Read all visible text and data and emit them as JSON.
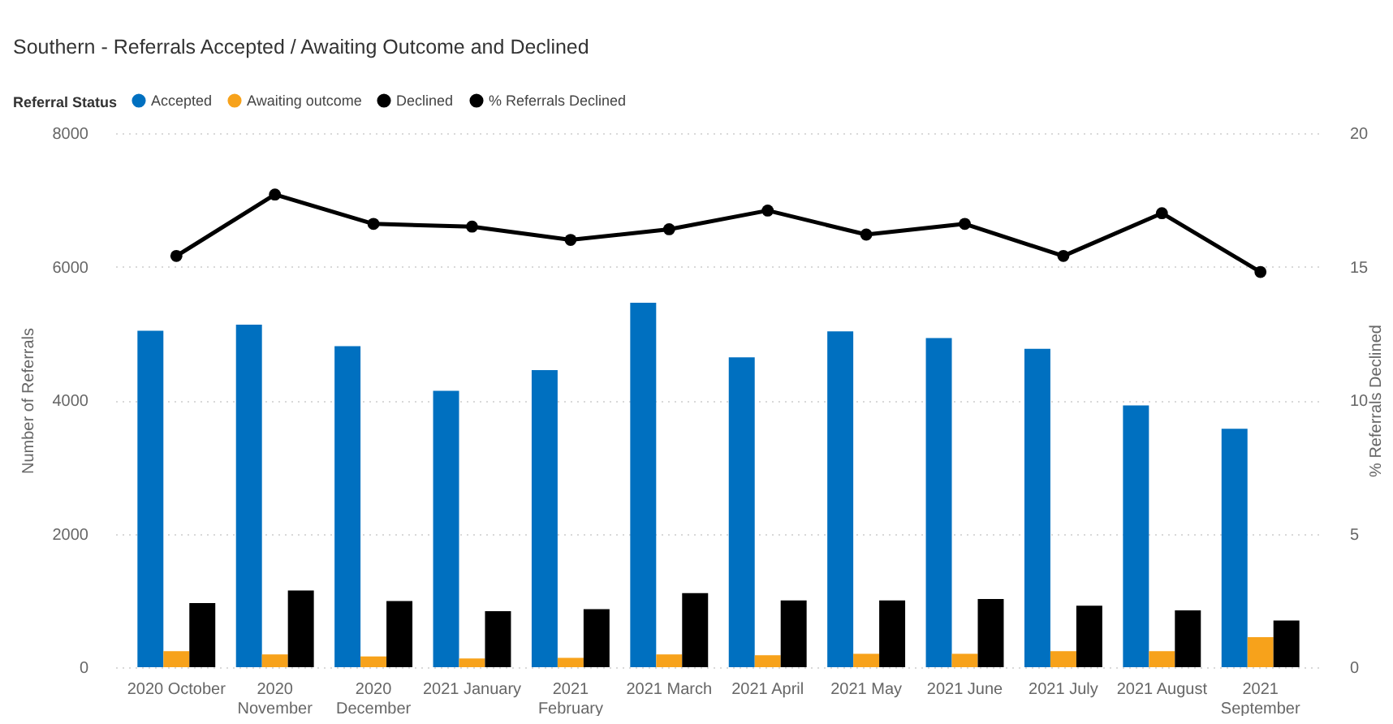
{
  "chart_data": {
    "type": "bar",
    "title": "Southern - Referrals Accepted / Awaiting Outcome and Declined",
    "legend_title": "Referral Status",
    "ylabel": "Number of Referrals",
    "y2label": "% Referrals Declined",
    "categories": [
      "2020 October",
      "2020 November",
      "2020 December",
      "2021 January",
      "2021 February",
      "2021 March",
      "2021 April",
      "2021 May",
      "2021 June",
      "2021 July",
      "2021 August",
      "2021 September"
    ],
    "series": [
      {
        "name": "Accepted",
        "color": "#0070c0",
        "values": [
          5040,
          5130,
          4810,
          4140,
          4450,
          5460,
          4640,
          5030,
          4930,
          4770,
          3920,
          3570
        ]
      },
      {
        "name": "Awaiting outcome",
        "color": "#f7a21b",
        "values": [
          240,
          190,
          160,
          130,
          140,
          190,
          180,
          200,
          200,
          240,
          240,
          450
        ]
      },
      {
        "name": "Declined",
        "color": "#000000",
        "values": [
          960,
          1150,
          990,
          840,
          870,
          1110,
          1000,
          1000,
          1020,
          920,
          850,
          700
        ]
      },
      {
        "name": "% Referrals Declined",
        "type": "line",
        "axis": "y2",
        "color": "#000000",
        "values": [
          15.4,
          17.7,
          16.6,
          16.5,
          16.0,
          16.4,
          17.1,
          16.2,
          16.6,
          15.4,
          17.0,
          14.8
        ]
      }
    ],
    "ylim": [
      0,
      8000
    ],
    "yticks": [
      0,
      2000,
      4000,
      6000,
      8000
    ],
    "y2lim": [
      0,
      20
    ],
    "y2ticks": [
      0,
      5,
      10,
      15,
      20
    ],
    "grid": "y",
    "legend": "top left",
    "marker": "circle"
  }
}
